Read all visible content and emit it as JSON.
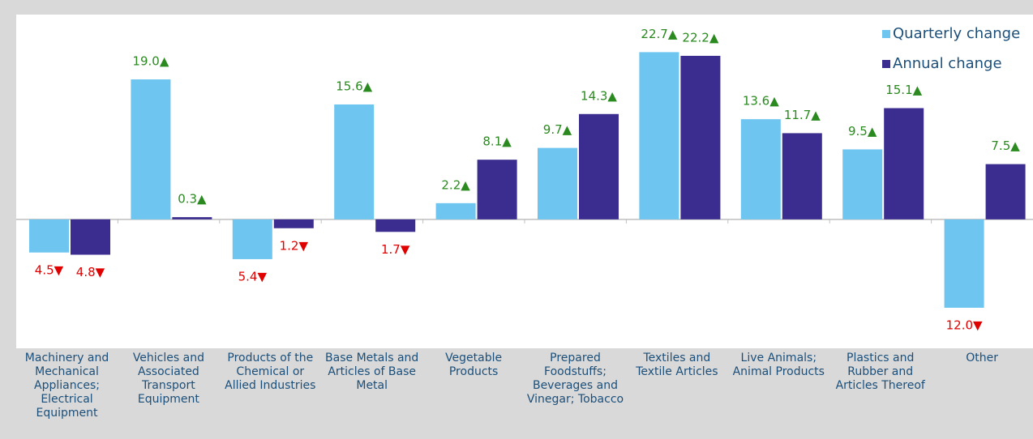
{
  "chart_data": {
    "type": "bar",
    "categories": [
      "Machinery and Mechanical Appliances; Electrical Equipment",
      "Vehicles and Associated Transport Equipment",
      "Products of the Chemical or Allied Industries",
      "Base Metals and Articles of Base Metal",
      "Vegetable Products",
      "Prepared Foodstuffs; Beverages and Vinegar; Tobacco",
      "Textiles and Textile Articles",
      "Live Animals; Animal Products",
      "Plastics and Rubber and Articles Thereof",
      "Other"
    ],
    "series": [
      {
        "name": "Quarterly change",
        "color": "#6ec6f0",
        "values": [
          -4.5,
          19.0,
          -5.4,
          15.6,
          2.2,
          9.7,
          22.7,
          13.6,
          9.5,
          -12.0
        ],
        "value_labels": [
          "4.5▼",
          "19.0▲",
          "5.4▼",
          "15.6▲",
          "2.2▲",
          "9.7▲",
          "22.7▲",
          "13.6▲",
          "9.5▲",
          "12.0▼"
        ]
      },
      {
        "name": "Annual change",
        "color": "#3a2d8f",
        "values": [
          -4.8,
          0.3,
          -1.2,
          -1.7,
          8.1,
          14.3,
          22.2,
          11.7,
          15.1,
          7.5
        ],
        "value_labels": [
          "4.8▼",
          "0.3▲",
          "1.2▼",
          "1.7▼",
          "8.1▲",
          "14.3▲",
          "22.2▲",
          "11.7▲",
          "15.1▲",
          "7.5▲"
        ]
      }
    ],
    "ylim": [
      -17.5,
      27.8
    ],
    "legend": "upper right",
    "up_color": "#2a8a1f",
    "down_color": "#e00000"
  }
}
